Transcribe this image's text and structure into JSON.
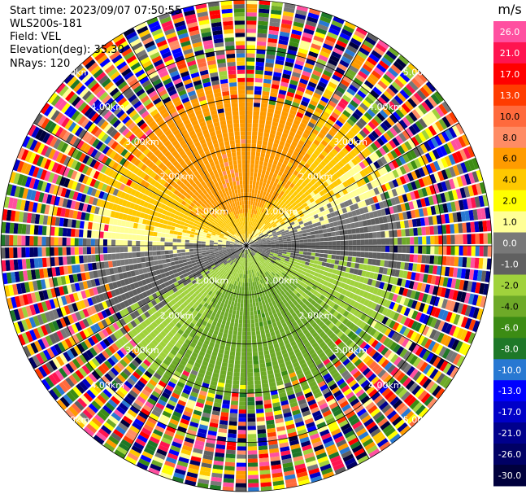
{
  "header": {
    "start_time": "Start time: 2023/09/07 07:50:55",
    "instrument": "WLS200s-181",
    "field": "Field: VEL",
    "elevation": "Elevation(deg): 35.30",
    "nrays": "NRays: 120"
  },
  "colorbar": {
    "unit": "m/s",
    "labels": [
      "26.0",
      "21.0",
      "17.0",
      "13.0",
      "10.0",
      "8.0",
      "6.0",
      "4.0",
      "2.0",
      "1.0",
      "0.0",
      "-1.0",
      "-2.0",
      "-4.0",
      "-6.0",
      "-8.0",
      "-10.0",
      "-13.0",
      "-17.0",
      "-21.0",
      "-26.0",
      "-30.0"
    ],
    "colors": [
      "#ff50a0",
      "#ff1450",
      "#ff0000",
      "#ff3c00",
      "#ff6a3c",
      "#ff8c64",
      "#ff9b00",
      "#ffc800",
      "#ffff00",
      "#ffff96",
      "#787878",
      "#606060",
      "#a0d23c",
      "#6eaa28",
      "#3c8c14",
      "#1e7828",
      "#2878d2",
      "#0000ff",
      "#0000c8",
      "#00008c",
      "#000064",
      "#00003c"
    ]
  },
  "chart_data": {
    "type": "ppi",
    "field": "VEL",
    "unit": "m/s",
    "nrays": 120,
    "range_rings_km": [
      1.0,
      2.0,
      3.0,
      4.0,
      5.0
    ],
    "ring_labels": [
      "1.00km",
      "2.00km",
      "3.00km",
      "4.00km",
      "5.00km"
    ],
    "max_range_km": 5.0,
    "grid_spokes_deg": [
      0,
      30,
      60,
      90,
      120,
      150,
      180,
      210,
      240,
      270,
      300,
      330
    ]
  }
}
